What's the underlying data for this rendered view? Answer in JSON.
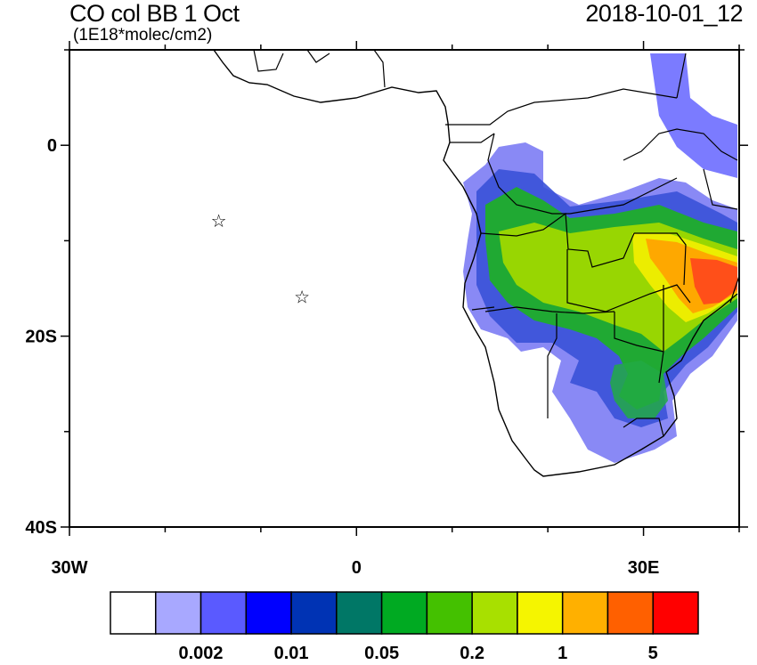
{
  "header": {
    "title": "CO col BB 1 Oct",
    "units": "(1E18*molec/cm2)",
    "datetime": "2018-10-01_12"
  },
  "axes": {
    "lat_ticks": [
      {
        "value": 0,
        "label": "0"
      },
      {
        "value": -20,
        "label": "20S"
      },
      {
        "value": -40,
        "label": "40S"
      }
    ],
    "lon_ticks": [
      {
        "value": -30,
        "label": "30W"
      },
      {
        "value": 0,
        "label": "0"
      },
      {
        "value": 30,
        "label": "30E"
      }
    ],
    "lon_range": [
      -30,
      40
    ],
    "lat_range": [
      -40,
      10
    ]
  },
  "markers": [
    {
      "name": "station-star-1",
      "lon": -14.4,
      "lat": -7.9,
      "symbol": "☆"
    },
    {
      "name": "station-star-2",
      "lon": -5.7,
      "lat": -15.9,
      "symbol": "☆"
    }
  ],
  "colorbar": {
    "colors": [
      "#ffffff",
      "#a8a8ff",
      "#5a5aff",
      "#0000ff",
      "#0033b4",
      "#007766",
      "#00aa22",
      "#44c100",
      "#a8e000",
      "#f5f500",
      "#ffb000",
      "#ff6000",
      "#ff0000"
    ],
    "labels": [
      {
        "boundary": 2,
        "text": "0.002"
      },
      {
        "boundary": 4,
        "text": "0.01"
      },
      {
        "boundary": 6,
        "text": "0.05"
      },
      {
        "boundary": 8,
        "text": "0.2"
      },
      {
        "boundary": 10,
        "text": "1"
      },
      {
        "boundary": 12,
        "text": "5"
      }
    ]
  }
}
